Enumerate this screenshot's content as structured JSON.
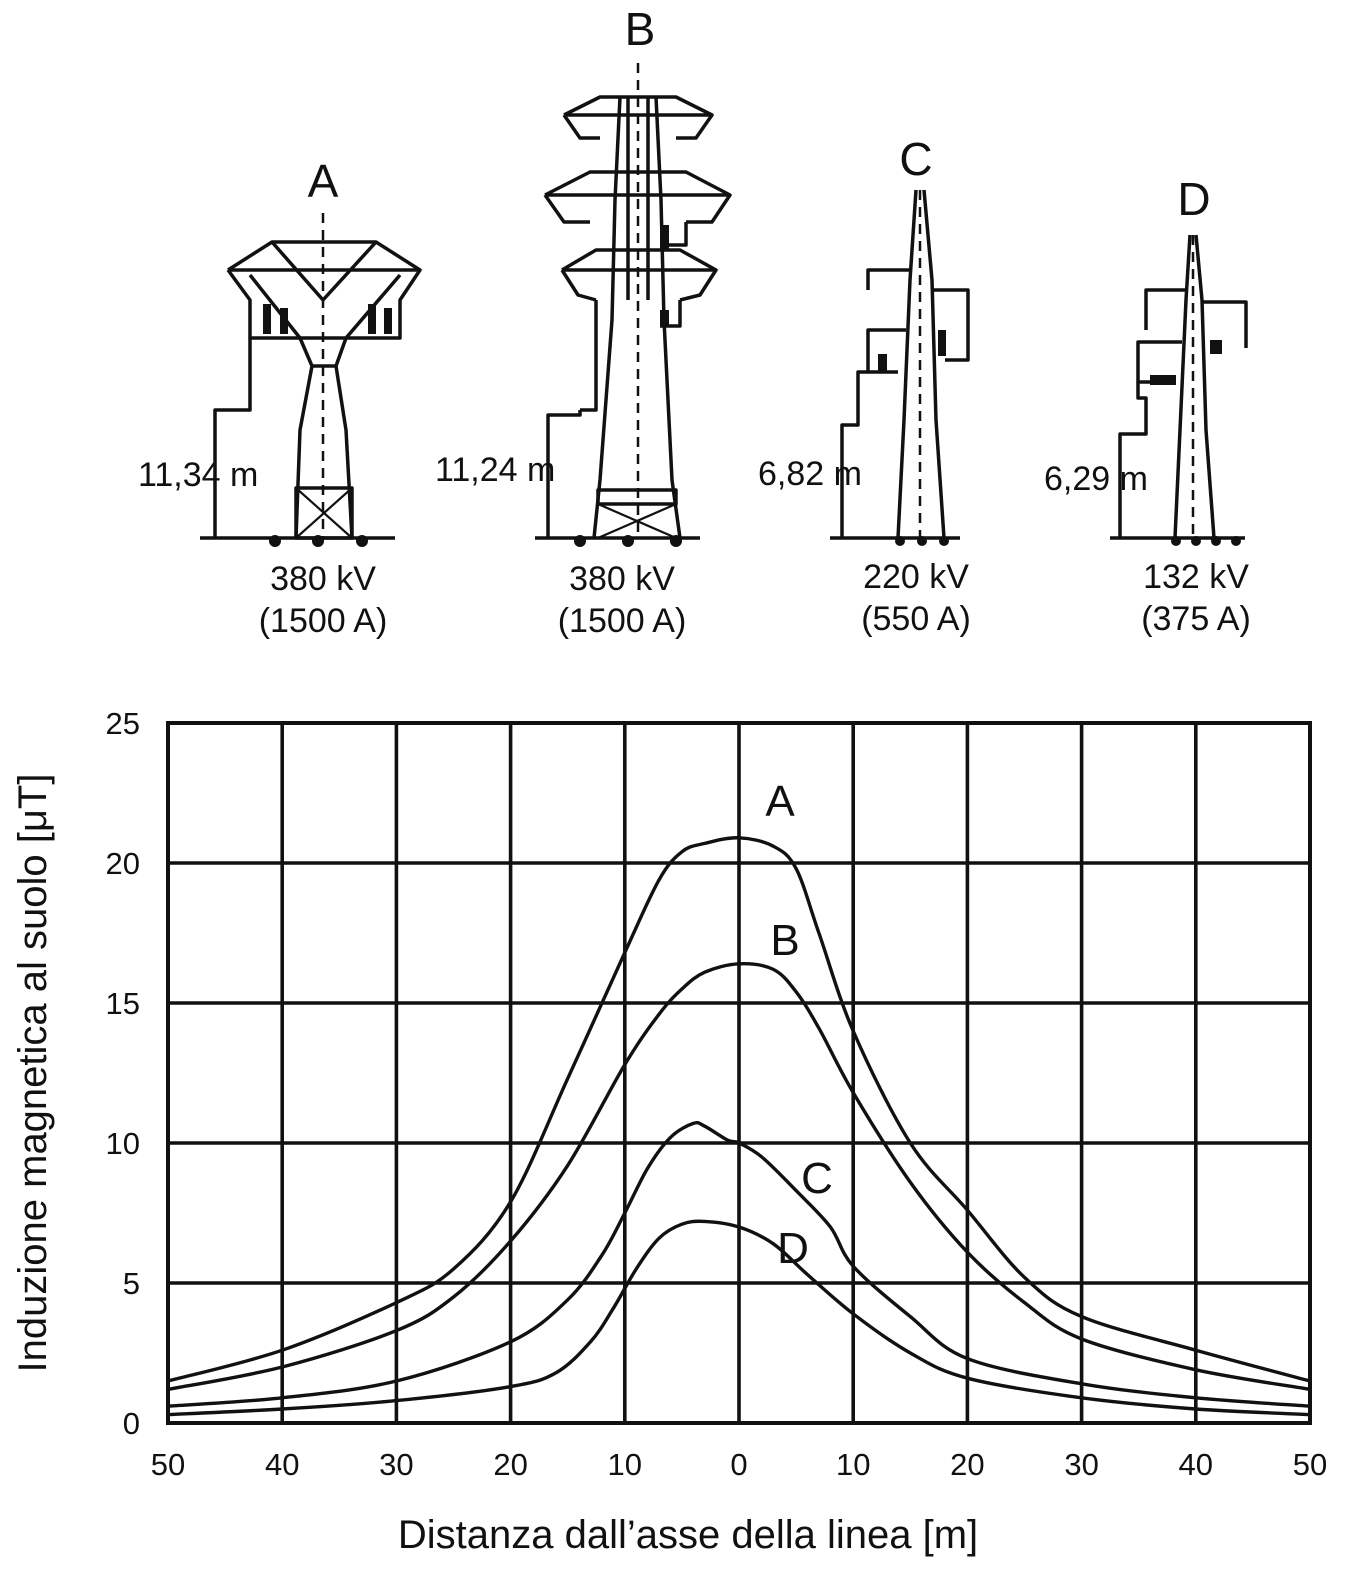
{
  "towers": [
    {
      "id": "tower-a",
      "label": "A",
      "height": "11,34 m",
      "voltage": "380 kV",
      "current": "(1500 A)"
    },
    {
      "id": "tower-b",
      "label": "B",
      "height": "11,24 m",
      "voltage": "380 kV",
      "current": "(1500 A)"
    },
    {
      "id": "tower-c",
      "label": "C",
      "height": "6,82 m",
      "voltage": "220 kV",
      "current": "(550 A)"
    },
    {
      "id": "tower-d",
      "label": "D",
      "height": "6,29 m",
      "voltage": "132 kV",
      "current": "(375 A)"
    }
  ],
  "chart_data": {
    "type": "line",
    "title": "",
    "xlabel": "Distanza dall’asse della linea [m]",
    "ylabel": "Induzione magnetica al suolo  [μT]",
    "x_tick_labels": [
      "50",
      "40",
      "30",
      "20",
      "10",
      "0",
      "10",
      "20",
      "30",
      "40",
      "50"
    ],
    "y_tick_labels": [
      "0",
      "5",
      "10",
      "15",
      "20",
      "25"
    ],
    "xlim": [
      -50,
      50
    ],
    "ylim": [
      0,
      25
    ],
    "grid": true,
    "legend": "none (curves labelled directly)",
    "series": [
      {
        "name": "A",
        "x": [
          -50,
          -40,
          -30,
          -25,
          -20,
          -15,
          -10,
          -7,
          -5,
          -3,
          0,
          3,
          5,
          7,
          10,
          15,
          20,
          25,
          30,
          40,
          50
        ],
        "y": [
          1.5,
          2.6,
          4.3,
          5.5,
          7.9,
          12.3,
          16.8,
          19.4,
          20.4,
          20.7,
          20.9,
          20.6,
          19.8,
          17.5,
          14.0,
          10.0,
          7.6,
          5.2,
          3.8,
          2.6,
          1.5
        ]
      },
      {
        "name": "B",
        "x": [
          -50,
          -40,
          -30,
          -25,
          -20,
          -15,
          -10,
          -7,
          -5,
          -3,
          0,
          3,
          5,
          7,
          10,
          15,
          20,
          25,
          30,
          40,
          50
        ],
        "y": [
          1.2,
          2.0,
          3.3,
          4.5,
          6.5,
          9.2,
          12.8,
          14.6,
          15.5,
          16.1,
          16.4,
          16.2,
          15.4,
          14.1,
          11.8,
          8.6,
          6.1,
          4.3,
          3.0,
          1.9,
          1.2
        ]
      },
      {
        "name": "C",
        "x": [
          -50,
          -40,
          -30,
          -20,
          -15,
          -12,
          -10,
          -8,
          -6,
          -4,
          -3,
          -1,
          0,
          2,
          5,
          8,
          10,
          15,
          20,
          30,
          40,
          50
        ],
        "y": [
          0.6,
          0.9,
          1.5,
          2.9,
          4.4,
          6.0,
          7.5,
          9.1,
          10.2,
          10.7,
          10.6,
          10.1,
          10.0,
          9.5,
          8.3,
          7.0,
          5.6,
          3.8,
          2.3,
          1.4,
          0.9,
          0.6
        ]
      },
      {
        "name": "D",
        "x": [
          -50,
          -40,
          -30,
          -20,
          -16,
          -13,
          -11,
          -9,
          -7,
          -5,
          -3,
          0,
          3,
          6,
          10,
          15,
          20,
          30,
          40,
          50
        ],
        "y": [
          0.3,
          0.5,
          0.8,
          1.3,
          1.8,
          2.9,
          4.1,
          5.5,
          6.6,
          7.1,
          7.2,
          7.0,
          6.4,
          5.3,
          3.9,
          2.5,
          1.6,
          0.9,
          0.5,
          0.3
        ]
      }
    ],
    "curve_labels": [
      "A",
      "B",
      "C",
      "D"
    ]
  }
}
